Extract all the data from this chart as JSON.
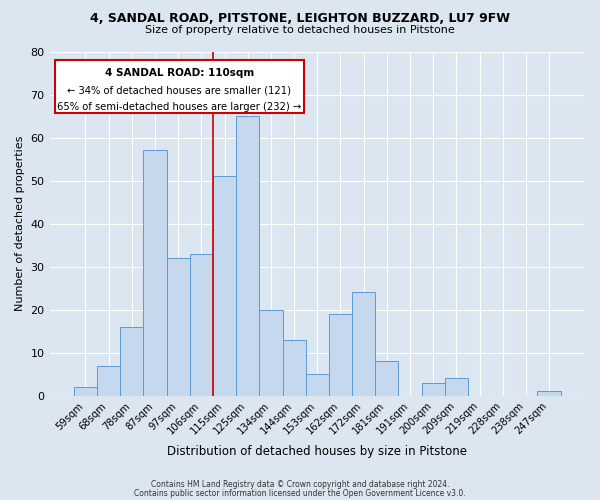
{
  "title1": "4, SANDAL ROAD, PITSTONE, LEIGHTON BUZZARD, LU7 9FW",
  "title2": "Size of property relative to detached houses in Pitstone",
  "xlabel": "Distribution of detached houses by size in Pitstone",
  "ylabel": "Number of detached properties",
  "categories": [
    "59sqm",
    "68sqm",
    "78sqm",
    "87sqm",
    "97sqm",
    "106sqm",
    "115sqm",
    "125sqm",
    "134sqm",
    "144sqm",
    "153sqm",
    "162sqm",
    "172sqm",
    "181sqm",
    "191sqm",
    "200sqm",
    "209sqm",
    "219sqm",
    "228sqm",
    "238sqm",
    "247sqm"
  ],
  "values": [
    2,
    7,
    16,
    57,
    32,
    33,
    51,
    65,
    20,
    13,
    5,
    19,
    24,
    8,
    0,
    3,
    4,
    0,
    0,
    0,
    1
  ],
  "bar_color": "#c5d8ed",
  "bar_edge_color": "#5b9bd5",
  "background_color": "#dce6f1",
  "annotation_border_color": "#cc0000",
  "annotation_text_line1": "4 SANDAL ROAD: 110sqm",
  "annotation_text_line2": "← 34% of detached houses are smaller (121)",
  "annotation_text_line3": "65% of semi-detached houses are larger (232) →",
  "ylim": [
    0,
    80
  ],
  "yticks": [
    0,
    10,
    20,
    30,
    40,
    50,
    60,
    70,
    80
  ],
  "vline_x": 5.5,
  "footer_line1": "Contains HM Land Registry data © Crown copyright and database right 2024.",
  "footer_line2": "Contains public sector information licensed under the Open Government Licence v3.0."
}
